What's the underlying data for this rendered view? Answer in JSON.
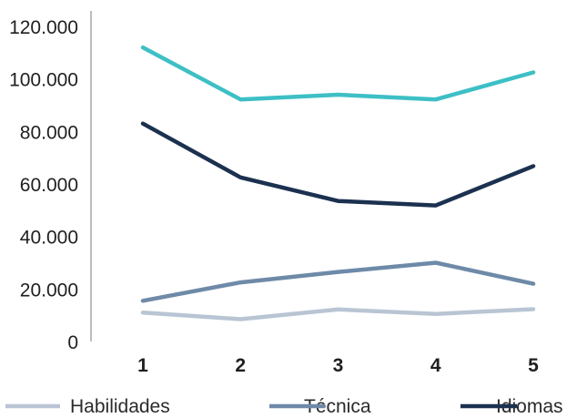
{
  "chart_data": {
    "type": "line",
    "title": "",
    "xlabel": "",
    "ylabel": "",
    "x": [
      "1",
      "2",
      "3",
      "4",
      "5"
    ],
    "ylim": [
      0,
      120000
    ],
    "y_ticks": [
      {
        "value": 0,
        "label": "0"
      },
      {
        "value": 20000,
        "label": "20.000"
      },
      {
        "value": 40000,
        "label": "40.000"
      },
      {
        "value": 60000,
        "label": "60.000"
      },
      {
        "value": 80000,
        "label": "80.000"
      },
      {
        "value": 100000,
        "label": "100.000"
      },
      {
        "value": 120000,
        "label": "120.000"
      }
    ],
    "grid": false,
    "legend_position": "bottom",
    "series": [
      {
        "name": "Habilidades",
        "color": "#b9c5d4",
        "values": [
          11000,
          8500,
          12200,
          10500,
          12300
        ]
      },
      {
        "name": "Técnica",
        "color": "#6e8aa8",
        "values": [
          15500,
          22500,
          26500,
          30000,
          22000
        ]
      },
      {
        "name": "Idiomas",
        "color": "#1c3150",
        "values": [
          83000,
          62500,
          53500,
          51800,
          66800
        ]
      },
      {
        "name": "",
        "color": "#3dbfc5",
        "values": [
          112000,
          92200,
          94000,
          92200,
          102500
        ]
      }
    ]
  }
}
